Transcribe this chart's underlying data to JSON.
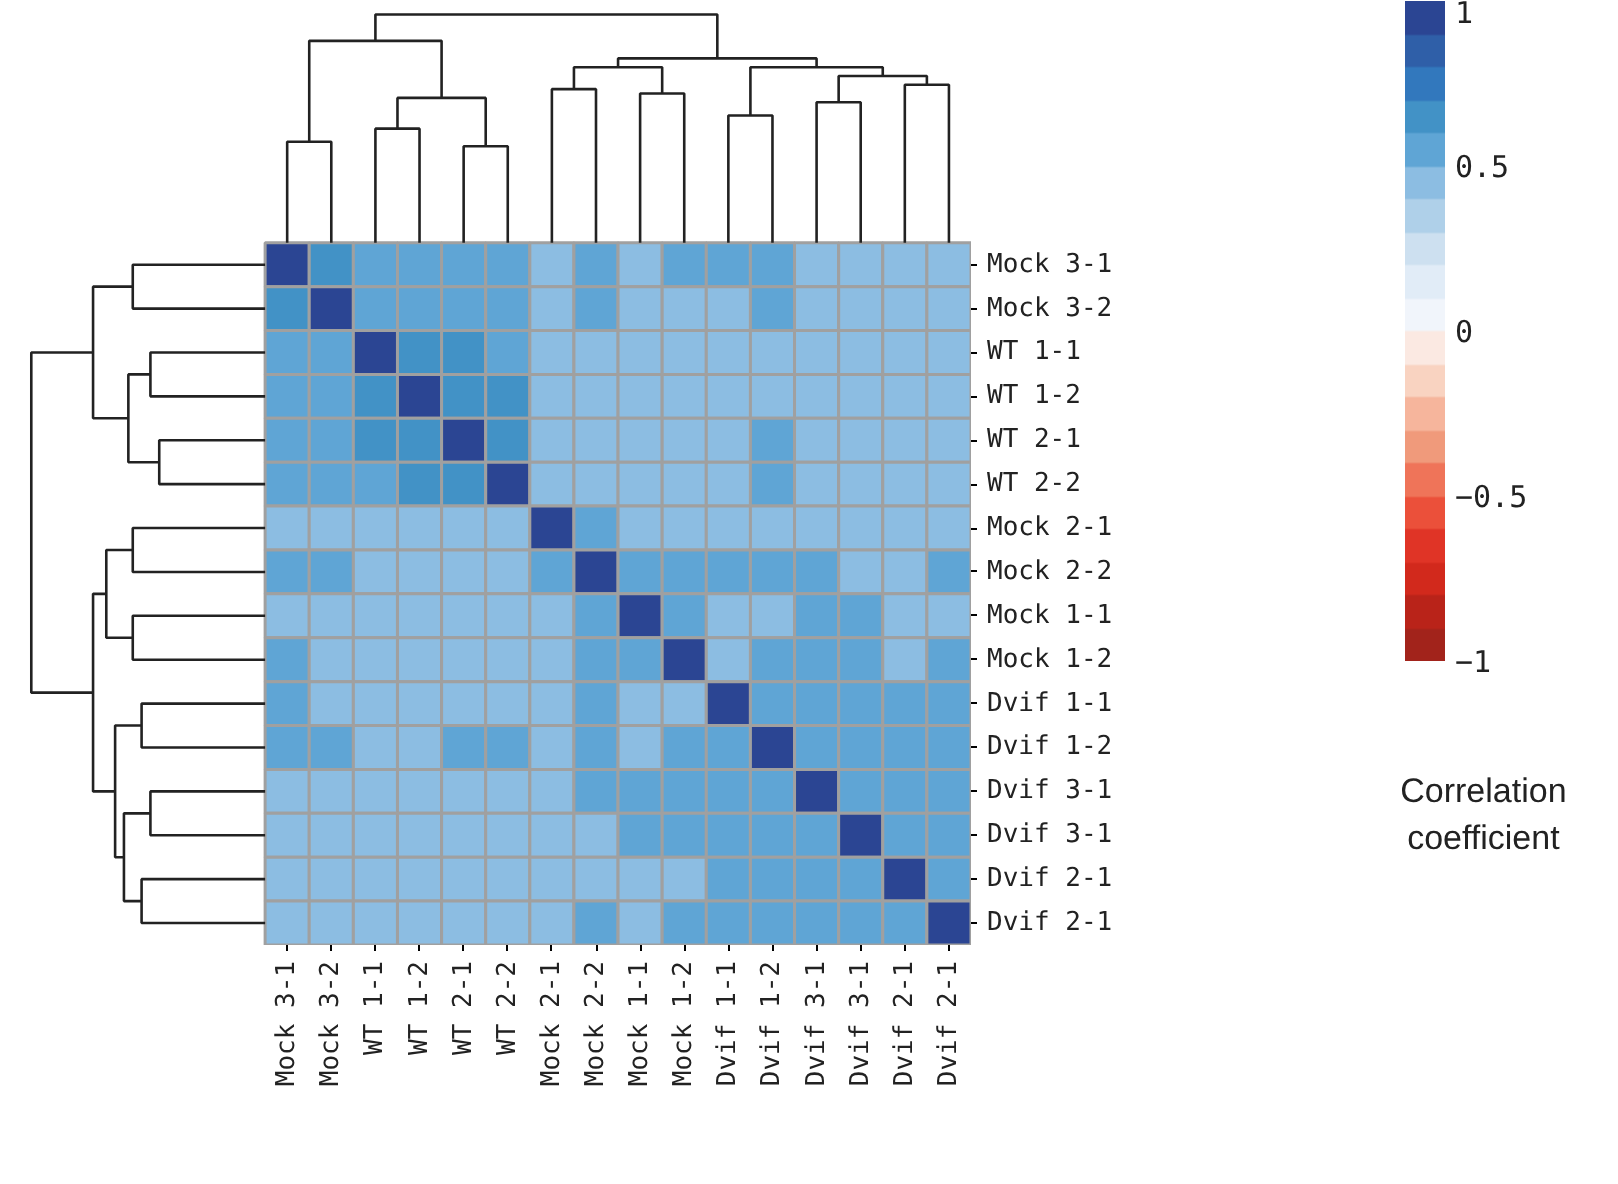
{
  "chart_data": {
    "type": "heatmap",
    "categories": [
      "Mock 3-1",
      "Mock 3-2",
      "WT 1-1",
      "WT 1-2",
      "WT 2-1",
      "WT 2-2",
      "Mock 2-1",
      "Mock 2-2",
      "Mock 1-1",
      "Mock 1-2",
      "Dvif 1-1",
      "Dvif 1-2",
      "Dvif 3-1",
      "Dvif 3-1",
      "Dvif 2-1",
      "Dvif 2-1"
    ],
    "y_categories": [
      "Mock 3-1",
      "Mock 3-2",
      "WT 1-1",
      "WT 1-2",
      "WT 2-1",
      "WT 2-2",
      "Mock 2-1",
      "Mock 2-2",
      "Mock 1-1",
      "Mock 1-2",
      "Dvif 1-1",
      "Dvif 1-2",
      "Dvif 3-1",
      "Dvif 3-1",
      "Dvif 2-1",
      "Dvif 2-1"
    ],
    "cells": [
      [
        1,
        0.65,
        0.55,
        0.55,
        0.55,
        0.55,
        0.45,
        0.55,
        0.45,
        0.55,
        0.55,
        0.55,
        0.45,
        0.45,
        0.45,
        0.45
      ],
      [
        0.65,
        1,
        0.55,
        0.55,
        0.55,
        0.55,
        0.45,
        0.55,
        0.45,
        0.45,
        0.45,
        0.55,
        0.45,
        0.45,
        0.45,
        0.45
      ],
      [
        0.55,
        0.55,
        1,
        0.65,
        0.65,
        0.55,
        0.45,
        0.45,
        0.45,
        0.45,
        0.45,
        0.45,
        0.45,
        0.45,
        0.45,
        0.45
      ],
      [
        0.55,
        0.55,
        0.65,
        1,
        0.65,
        0.65,
        0.45,
        0.45,
        0.45,
        0.45,
        0.45,
        0.45,
        0.45,
        0.45,
        0.45,
        0.45
      ],
      [
        0.55,
        0.55,
        0.65,
        0.65,
        1,
        0.65,
        0.45,
        0.45,
        0.45,
        0.45,
        0.45,
        0.55,
        0.45,
        0.45,
        0.45,
        0.45
      ],
      [
        0.55,
        0.55,
        0.55,
        0.65,
        0.65,
        1,
        0.45,
        0.45,
        0.45,
        0.45,
        0.45,
        0.55,
        0.45,
        0.45,
        0.45,
        0.45
      ],
      [
        0.45,
        0.45,
        0.45,
        0.45,
        0.45,
        0.45,
        1,
        0.55,
        0.45,
        0.45,
        0.45,
        0.45,
        0.45,
        0.45,
        0.45,
        0.45
      ],
      [
        0.55,
        0.55,
        0.45,
        0.45,
        0.45,
        0.45,
        0.55,
        1,
        0.55,
        0.55,
        0.55,
        0.55,
        0.55,
        0.45,
        0.45,
        0.55
      ],
      [
        0.45,
        0.45,
        0.45,
        0.45,
        0.45,
        0.45,
        0.45,
        0.55,
        1,
        0.55,
        0.45,
        0.45,
        0.55,
        0.55,
        0.45,
        0.45
      ],
      [
        0.55,
        0.45,
        0.45,
        0.45,
        0.45,
        0.45,
        0.45,
        0.55,
        0.55,
        1,
        0.45,
        0.55,
        0.55,
        0.55,
        0.45,
        0.55
      ],
      [
        0.55,
        0.45,
        0.45,
        0.45,
        0.45,
        0.45,
        0.45,
        0.55,
        0.45,
        0.45,
        1,
        0.55,
        0.55,
        0.55,
        0.55,
        0.55
      ],
      [
        0.55,
        0.55,
        0.45,
        0.45,
        0.55,
        0.55,
        0.45,
        0.55,
        0.45,
        0.55,
        0.55,
        1,
        0.55,
        0.55,
        0.55,
        0.55
      ],
      [
        0.45,
        0.45,
        0.45,
        0.45,
        0.45,
        0.45,
        0.45,
        0.55,
        0.55,
        0.55,
        0.55,
        0.55,
        1,
        0.55,
        0.55,
        0.55
      ],
      [
        0.45,
        0.45,
        0.45,
        0.45,
        0.45,
        0.45,
        0.45,
        0.45,
        0.55,
        0.55,
        0.55,
        0.55,
        0.55,
        1,
        0.55,
        0.55
      ],
      [
        0.45,
        0.45,
        0.45,
        0.45,
        0.45,
        0.45,
        0.45,
        0.45,
        0.45,
        0.45,
        0.55,
        0.55,
        0.55,
        0.55,
        1,
        0.55
      ],
      [
        0.45,
        0.45,
        0.45,
        0.45,
        0.45,
        0.45,
        0.45,
        0.55,
        0.45,
        0.55,
        0.55,
        0.55,
        0.55,
        0.55,
        0.55,
        1
      ]
    ],
    "clim": [
      -1,
      1
    ],
    "cticks": [
      {
        "value": -1,
        "label": "−1"
      },
      {
        "value": -0.5,
        "label": "−0.5"
      },
      0,
      0.5,
      1
    ],
    "colors": [
      "#a2231b",
      "#b92319",
      "#d2291c",
      "#e03426",
      "#eb503a",
      "#ef7459",
      "#f09a7b",
      "#f6b59c",
      "#f9d3c1",
      "#fbe9e2",
      "#f1f5fb",
      "#e1ecf7",
      "#cde0f0",
      "#afd0e9",
      "#8cbde2",
      "#5fa5d5",
      "#4292c6",
      "#3278bd",
      "#2f5fa8",
      "#2b4593"
    ],
    "clabel": "Correlation coefficient"
  }
}
